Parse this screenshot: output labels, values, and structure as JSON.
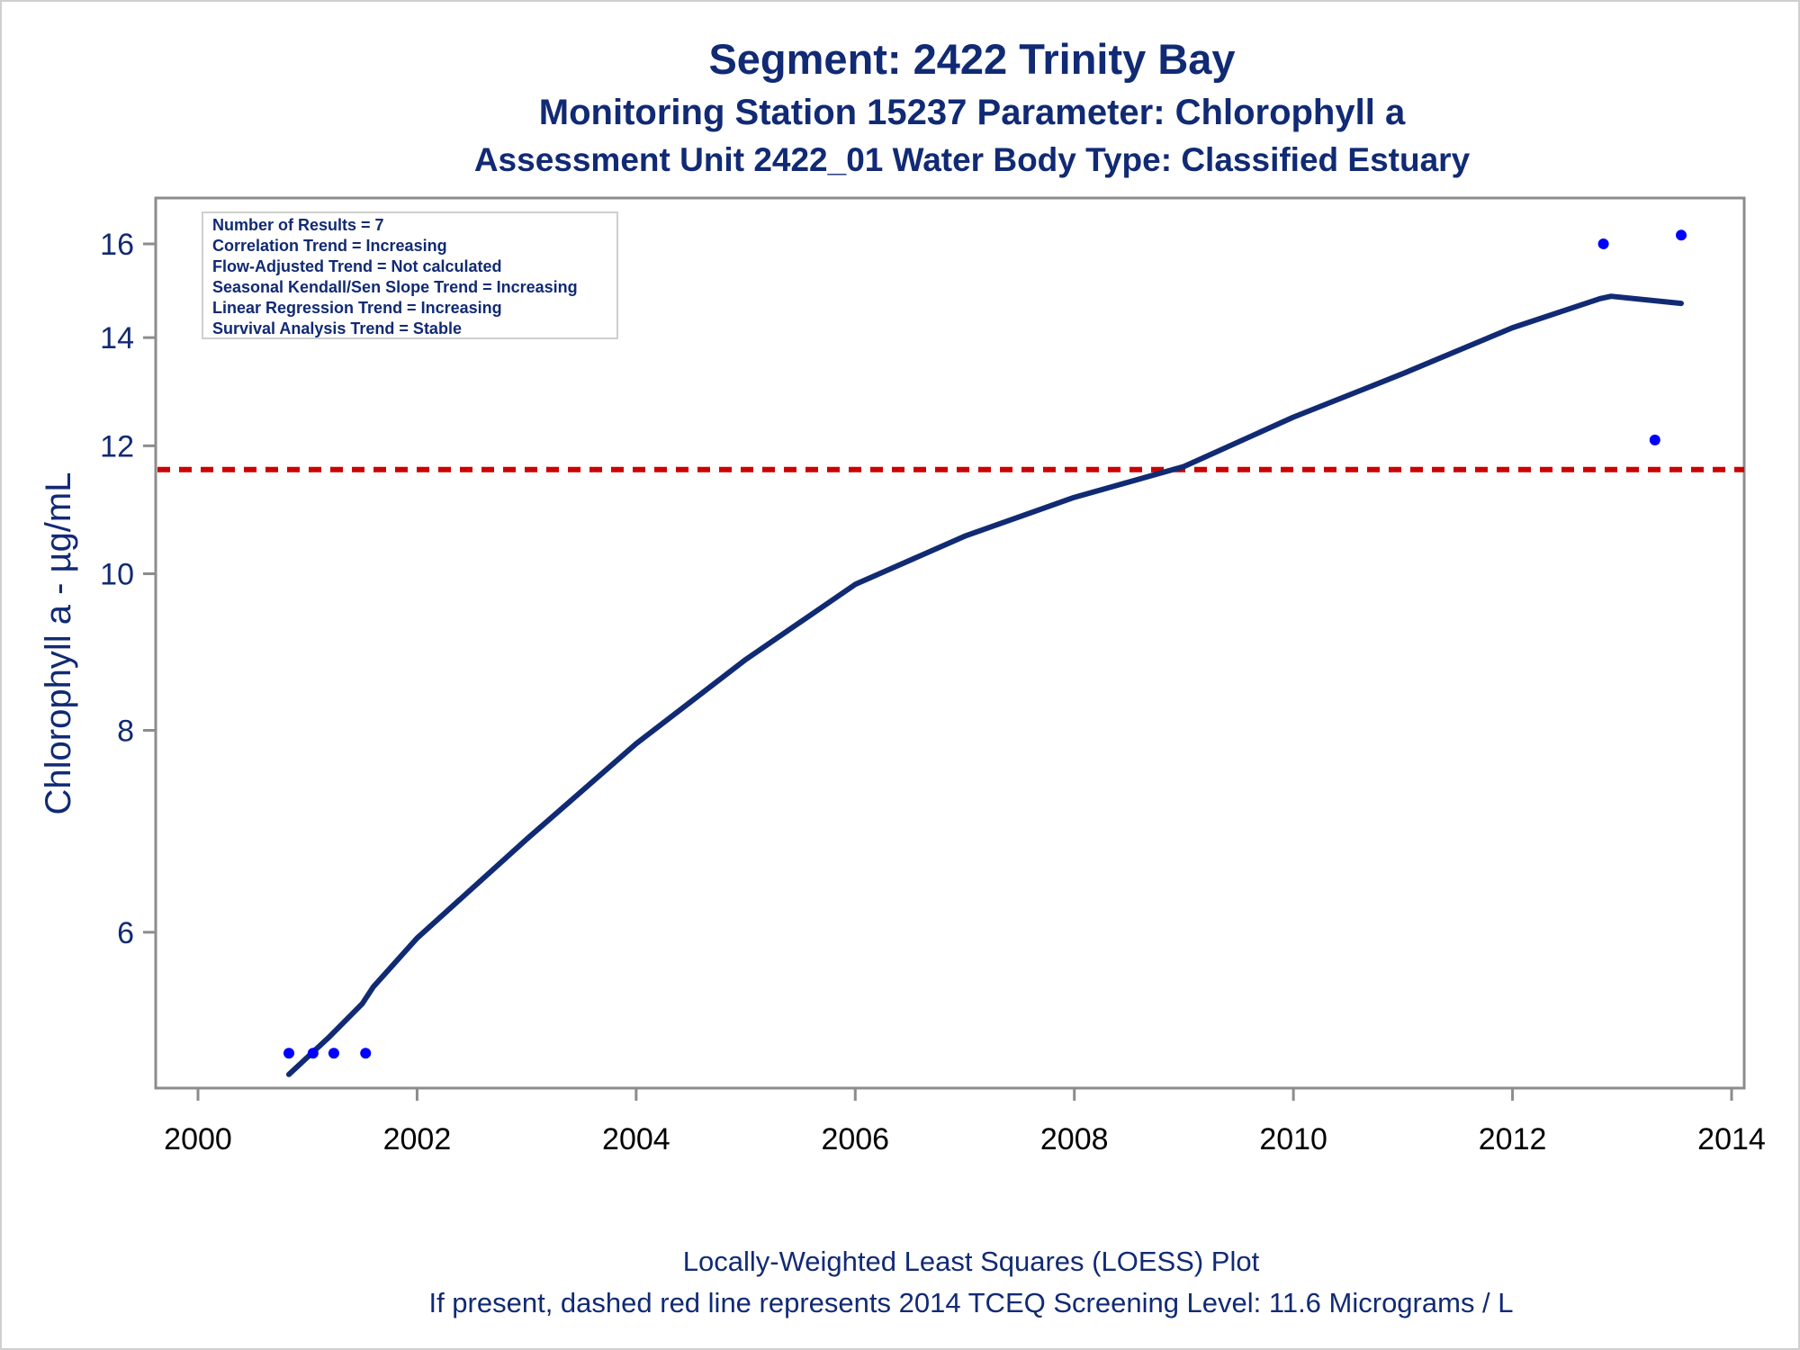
{
  "chart_data": {
    "type": "scatter",
    "title": "Segment: 2422  Trinity Bay",
    "subtitle": "Monitoring Station 15237 Parameter: Chlorophyll a",
    "subtitle2": "Assessment Unit 2422_01   Water Body Type: Classified Estuary",
    "xlabel": "",
    "ylabel": "Chlorophyll a -  µg/mL",
    "xlim": [
      2000,
      2014
    ],
    "ylim": [
      5.0,
      16.5
    ],
    "y_scale": "log",
    "x_ticks": [
      2000,
      2002,
      2004,
      2006,
      2008,
      2010,
      2012,
      2014
    ],
    "y_ticks": [
      6,
      8,
      10,
      12,
      14,
      16
    ],
    "grid": false,
    "series": [
      {
        "kind": "points",
        "color": "#0000ff",
        "x": [
          2000.83,
          2001.05,
          2001.24,
          2001.53,
          2012.83,
          2013.3,
          2013.54
        ],
        "y": [
          5.05,
          5.05,
          5.05,
          5.05,
          16.0,
          12.1,
          16.2
        ]
      },
      {
        "kind": "loess_line",
        "color": "#112a74",
        "x": [
          2000.83,
          2001.2,
          2001.5,
          2001.6,
          2002.0,
          2003.0,
          2004.0,
          2005.0,
          2006.0,
          2007.0,
          2008.0,
          2009.0,
          2010.0,
          2011.0,
          2012.0,
          2012.8,
          2012.9,
          2013.54
        ],
        "y": [
          4.9,
          5.17,
          5.42,
          5.55,
          5.95,
          6.85,
          7.85,
          8.85,
          9.85,
          10.55,
          11.15,
          11.65,
          12.5,
          13.3,
          14.2,
          14.8,
          14.85,
          14.7
        ]
      }
    ],
    "reference_line": {
      "y": 11.6,
      "color": "#cc0000",
      "style": "dashed"
    },
    "annotations": [
      "Number of Results = 7",
      "Correlation Trend = Increasing",
      "Flow-Adjusted Trend = Not calculated",
      "Seasonal Kendall/Sen Slope Trend = Increasing",
      "Linear Regression Trend = Increasing",
      "Survival Analysis Trend = Stable"
    ],
    "footnotes": [
      "Locally-Weighted Least Squares (LOESS) Plot",
      "If present, dashed red line represents 2014 TCEQ Screening Level: 11.6 Micrograms / L"
    ]
  }
}
